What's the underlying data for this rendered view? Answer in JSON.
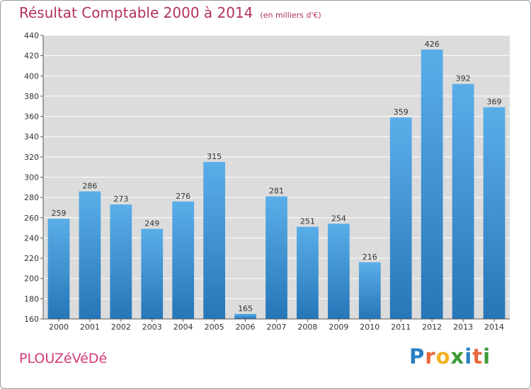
{
  "header": {
    "title": "Résultat Comptable 2000 à 2014",
    "subtitle": "(en milliers d'€)"
  },
  "footer": {
    "commune": "PLOUZéVéDé",
    "logo_letters": [
      "P",
      "r",
      "o",
      "x",
      "i",
      "t",
      "i"
    ],
    "logo_colors": [
      "#2a7fc1",
      "#e8683a",
      "#f0b020",
      "#3d9b35",
      "#2a7fc1",
      "#e8683a",
      "#3d9b35"
    ]
  },
  "chart_data": {
    "type": "bar",
    "categories": [
      "2000",
      "2001",
      "2002",
      "2003",
      "2004",
      "2005",
      "2006",
      "2007",
      "2008",
      "2009",
      "2010",
      "2011",
      "2012",
      "2013",
      "2014"
    ],
    "values": [
      259,
      286,
      273,
      249,
      276,
      315,
      165,
      281,
      251,
      254,
      216,
      359,
      426,
      392,
      369
    ],
    "title": "Résultat Comptable 2000 à 2014",
    "ylim": [
      160,
      440
    ],
    "yticks": [
      160,
      180,
      200,
      220,
      240,
      260,
      280,
      300,
      320,
      340,
      360,
      380,
      400,
      420,
      440
    ],
    "grid": true,
    "bar_color_top": "#5aaee8",
    "bar_color_bottom": "#2676b8",
    "plot_background": "#dcdcdc",
    "grid_color": "#ffffff"
  }
}
